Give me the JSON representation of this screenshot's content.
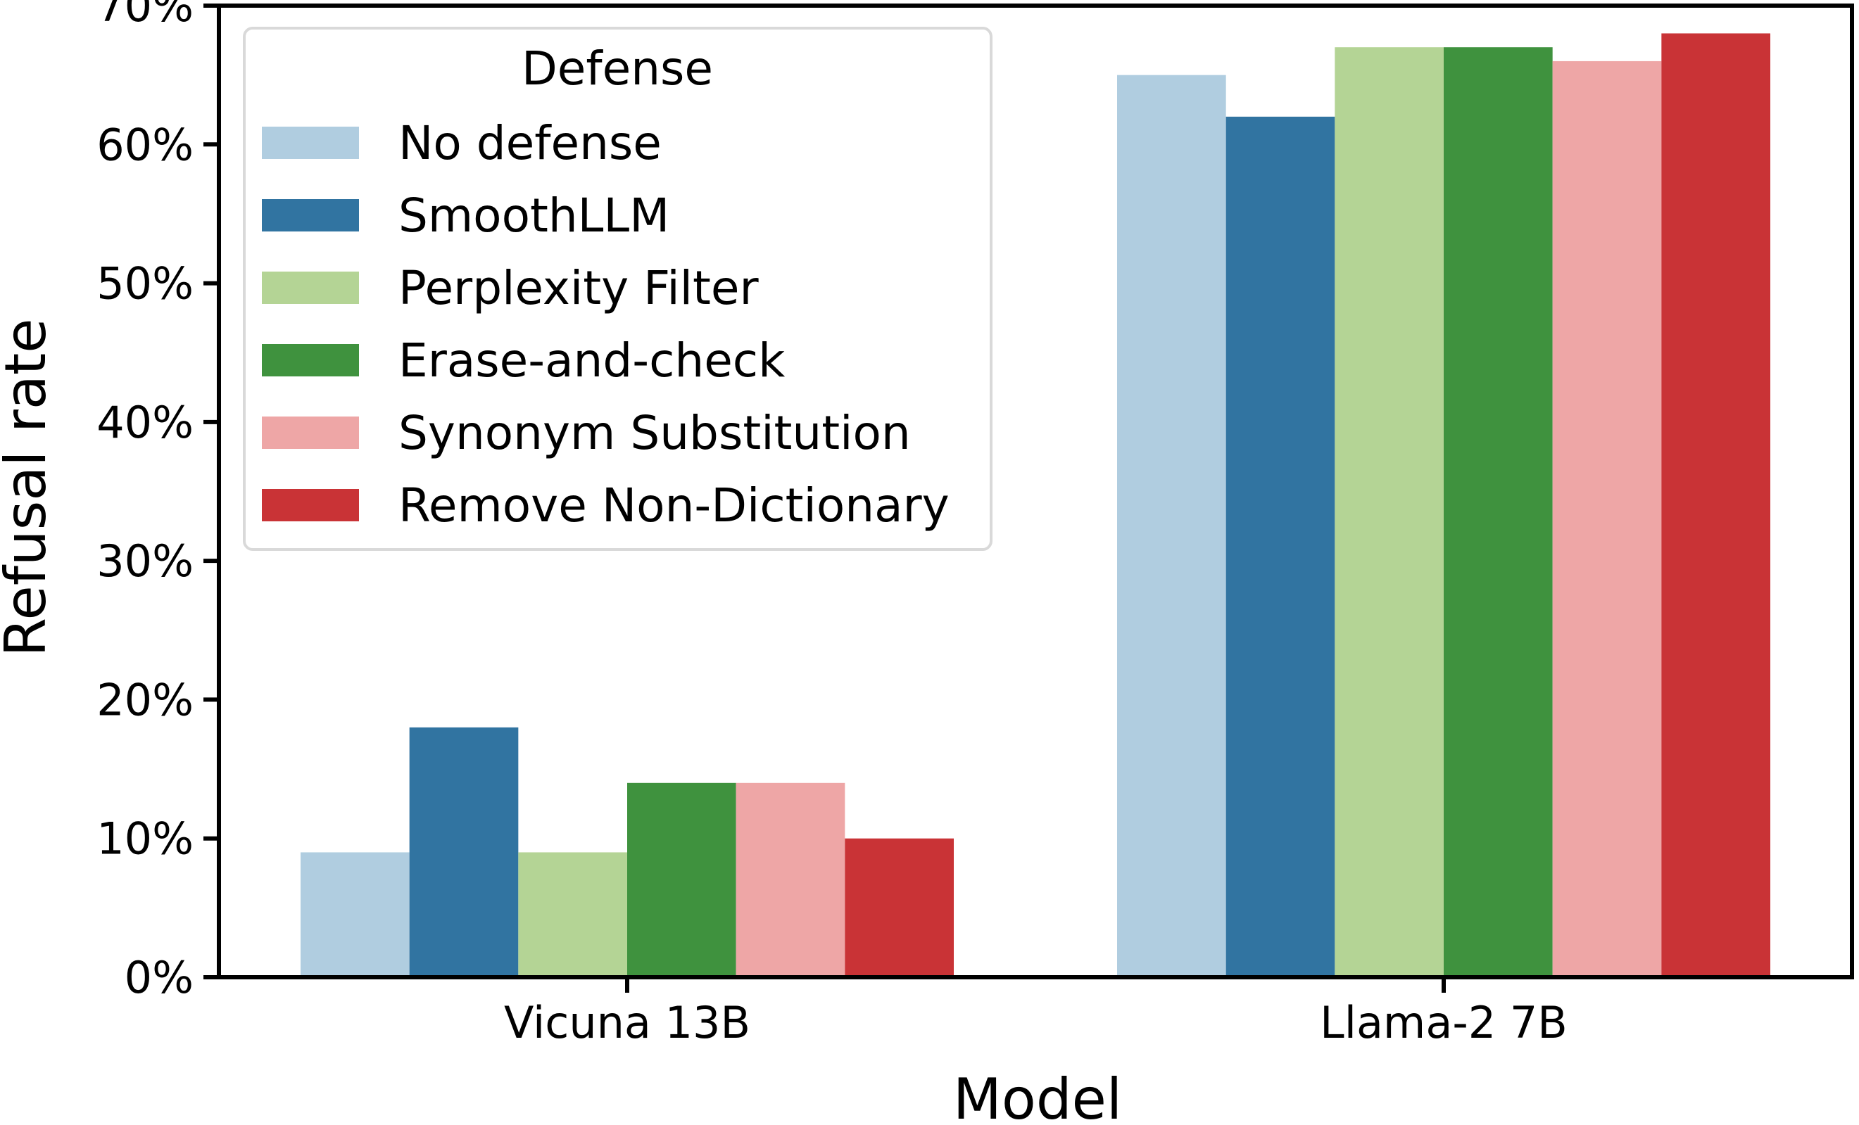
{
  "chart_data": {
    "type": "bar",
    "title": "",
    "xlabel": "Model",
    "ylabel": "Refusal rate",
    "categories": [
      "Vicuna 13B",
      "Llama-2 7B"
    ],
    "ylim": [
      0,
      70
    ],
    "yticks": [
      0,
      10,
      20,
      30,
      40,
      50,
      60,
      70
    ],
    "ytick_labels": [
      "0%",
      "10%",
      "20%",
      "30%",
      "40%",
      "50%",
      "60%",
      "70%"
    ],
    "y_unit": "%",
    "grid": false,
    "legend": {
      "title": "Defense",
      "placement": "top-left"
    },
    "series": [
      {
        "name": "No defense",
        "color": "#b0cde0",
        "values": [
          9,
          65
        ]
      },
      {
        "name": "SmoothLLM",
        "color": "#3174a1",
        "values": [
          18,
          62
        ]
      },
      {
        "name": "Perplexity Filter",
        "color": "#b4d495",
        "values": [
          9,
          67
        ]
      },
      {
        "name": "Erase-and-check",
        "color": "#3f923e",
        "values": [
          14,
          67
        ]
      },
      {
        "name": "Synonym Substitution",
        "color": "#eea6a6",
        "values": [
          14,
          66
        ]
      },
      {
        "name": "Remove Non-Dictionary",
        "color": "#c93336",
        "values": [
          10,
          68
        ]
      }
    ]
  }
}
